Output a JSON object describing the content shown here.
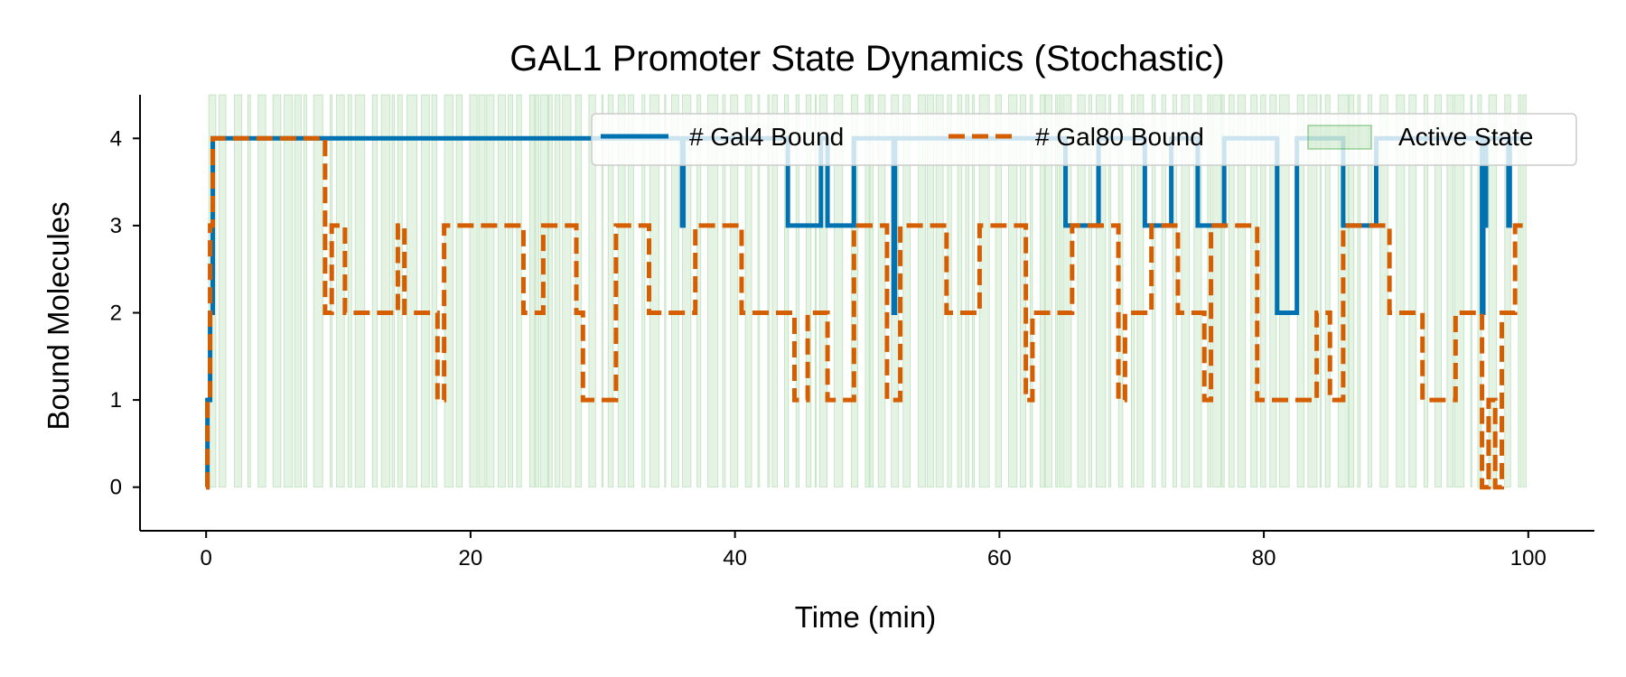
{
  "chart_data": {
    "type": "line",
    "title": "GAL1 Promoter State Dynamics (Stochastic)",
    "xlabel": "Time (min)",
    "ylabel": "Bound Molecules",
    "xlim": [
      -5,
      105
    ],
    "ylim": [
      -0.5,
      4.5
    ],
    "xticks": [
      0,
      20,
      40,
      60,
      80,
      100
    ],
    "yticks": [
      0,
      1,
      2,
      3,
      4
    ],
    "grid": false,
    "legend_position": "top-right",
    "series": [
      {
        "name": "# Gal4 Bound",
        "style": "solid",
        "color": "#0072B2",
        "x": [
          0,
          0.1,
          0.3,
          0.5,
          36.0,
          36.1,
          44.0,
          46.5,
          47.0,
          49.0,
          52.0,
          52.1,
          65.0,
          67.5,
          71.0,
          73.0,
          75.0,
          77.0,
          81.0,
          82.5,
          86.0,
          88.5,
          96.5,
          96.6,
          96.8,
          98.5,
          98.6,
          100
        ],
        "y": [
          0,
          1,
          2,
          4,
          3,
          4,
          3,
          4,
          3,
          4,
          2,
          4,
          3,
          4,
          3,
          4,
          3,
          4,
          2,
          4,
          3,
          4,
          2,
          3,
          4,
          3,
          4,
          4
        ]
      },
      {
        "name": "# Gal80 Bound",
        "style": "dashed",
        "color": "#D55E00",
        "x": [
          0,
          0.1,
          0.3,
          0.5,
          9.0,
          9.5,
          10.5,
          14.5,
          15.0,
          17.5,
          18.0,
          24.0,
          25.5,
          28.0,
          28.5,
          31.0,
          33.5,
          37.0,
          40.5,
          44.5,
          45.5,
          47.0,
          49.0,
          51.5,
          52.5,
          56.0,
          58.5,
          62.0,
          62.5,
          65.5,
          69.0,
          69.5,
          71.5,
          73.5,
          75.5,
          76.0,
          79.5,
          84.0,
          85.0,
          86.0,
          89.5,
          92.0,
          94.5,
          96.5,
          97.0,
          97.5,
          98.0,
          99.0,
          100
        ],
        "y": [
          0,
          1,
          3,
          4,
          2,
          3,
          2,
          3,
          2,
          1,
          3,
          2,
          3,
          2,
          1,
          3,
          2,
          3,
          2,
          1,
          2,
          1,
          3,
          1,
          3,
          2,
          3,
          1,
          2,
          3,
          1,
          2,
          3,
          2,
          1,
          3,
          1,
          2,
          1,
          3,
          2,
          1,
          2,
          0,
          1,
          0,
          2,
          3,
          3
        ]
      }
    ],
    "active_state": {
      "name": "Active State",
      "color": "#2ca02c",
      "y_range": [
        0,
        4.5
      ]
    }
  }
}
